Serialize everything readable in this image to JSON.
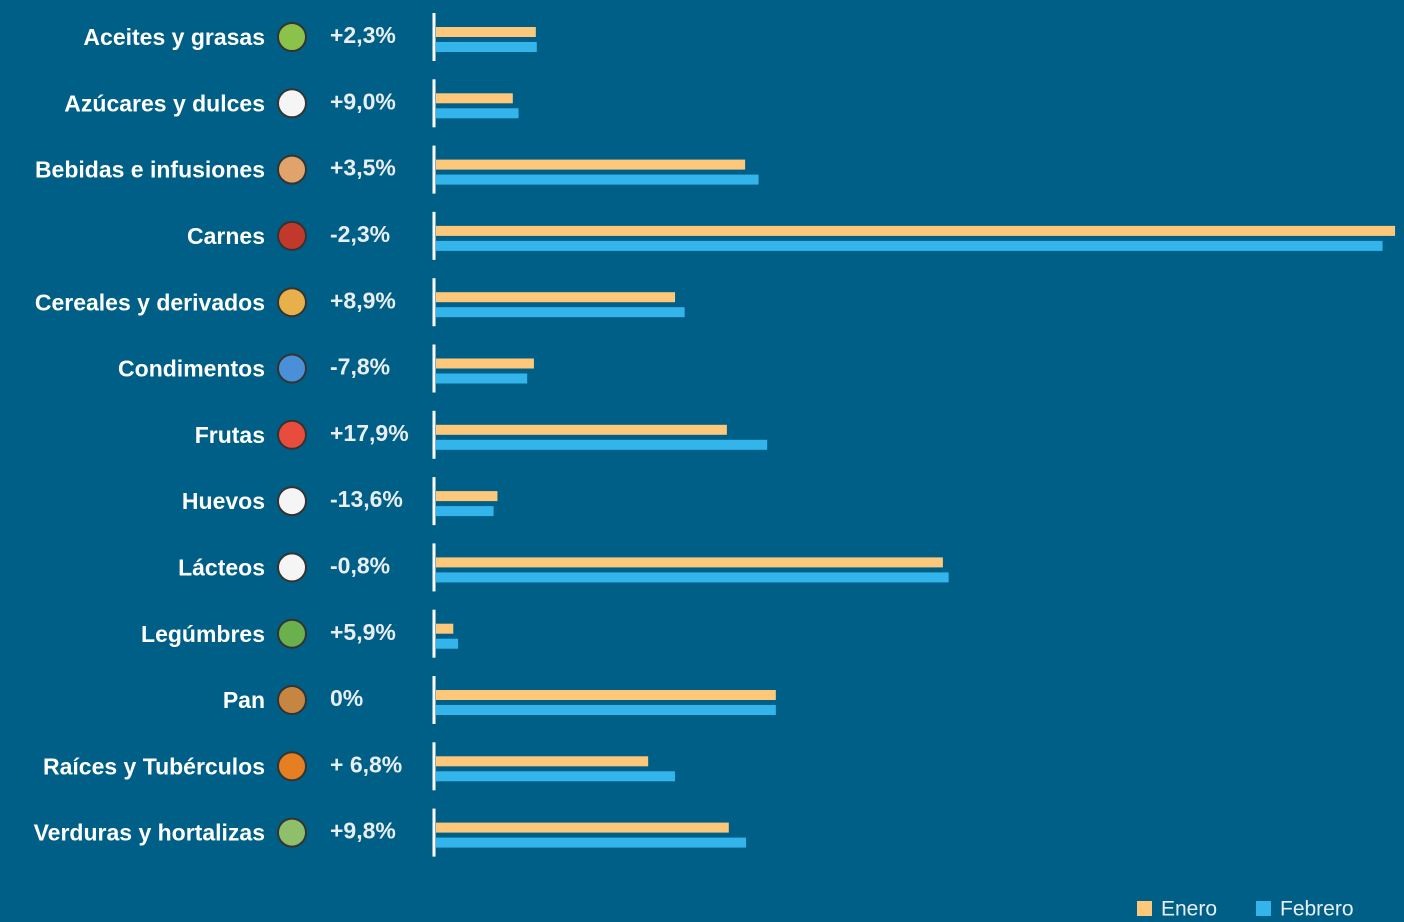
{
  "chart_data": {
    "type": "bar",
    "orientation": "horizontal",
    "categories": [
      "Aceites y grasas",
      "Azúcares y dulces",
      "Bebidas e infusiones",
      "Carnes",
      "Cereales y derivados",
      "Condimentos",
      "Frutas",
      "Huevos",
      "Lácteos",
      "Legúmbres",
      "Pan",
      "Raíces y Tubérculos",
      "Verduras y hortalizas"
    ],
    "changes": [
      "+2,3%",
      "+9,0%",
      "+3,5%",
      "-2,3%",
      "+8,9%",
      "-7,8%",
      "+17,9%",
      "-13,6%",
      "-0,8%",
      "+5,9%",
      "0%",
      "+ 6,8%",
      "+9,8%"
    ],
    "series": [
      {
        "name": "Enero",
        "color": "#fdc87a",
        "values": [
          10.4,
          8.0,
          32.2,
          99.9,
          24.9,
          10.2,
          30.3,
          6.4,
          52.8,
          1.8,
          35.4,
          22.1,
          30.5
        ]
      },
      {
        "name": "Febrero",
        "color": "#33b5ec",
        "values": [
          10.5,
          8.6,
          33.6,
          98.6,
          25.9,
          9.5,
          34.5,
          6.0,
          53.4,
          2.3,
          35.4,
          24.9,
          32.3
        ]
      }
    ],
    "xlim": [
      0,
      100
    ],
    "legend": "bottom-right"
  }
}
